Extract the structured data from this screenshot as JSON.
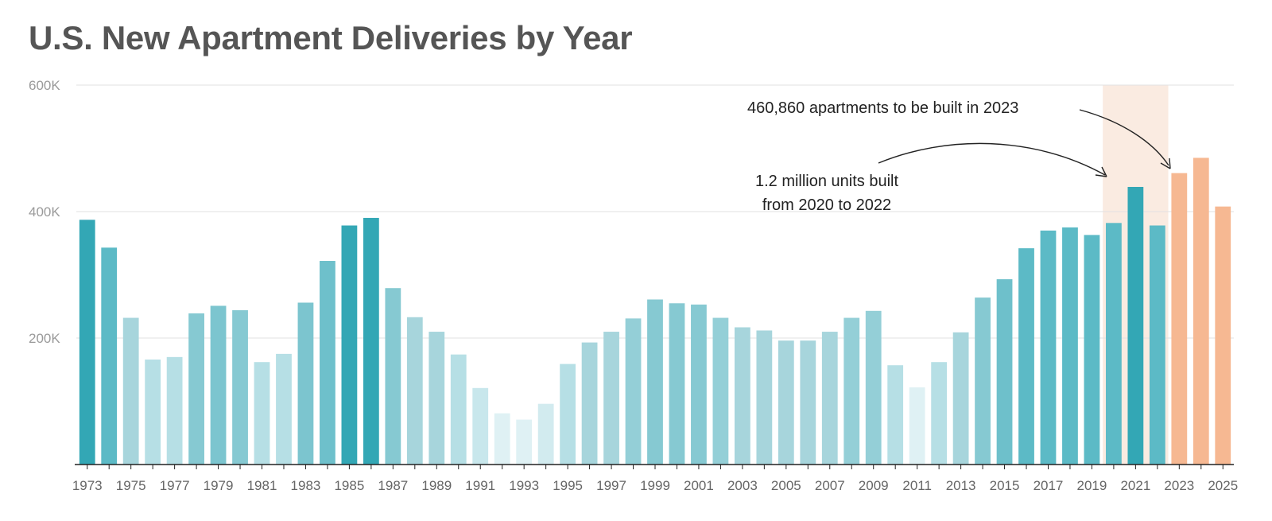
{
  "title": "U.S. New Apartment Deliveries by Year",
  "chart_data": {
    "type": "bar",
    "title": "U.S. New Apartment Deliveries by Year",
    "xlabel": "",
    "ylabel": "",
    "ylim": [
      0,
      600000
    ],
    "y_ticks": [
      {
        "value": 200000,
        "label": "200K"
      },
      {
        "value": 400000,
        "label": "400K"
      },
      {
        "value": 600000,
        "label": "600K"
      }
    ],
    "grid": true,
    "categories": [
      "1973",
      "1974",
      "1975",
      "1976",
      "1977",
      "1978",
      "1979",
      "1980",
      "1981",
      "1982",
      "1983",
      "1984",
      "1985",
      "1986",
      "1987",
      "1988",
      "1989",
      "1990",
      "1991",
      "1992",
      "1993",
      "1994",
      "1995",
      "1996",
      "1997",
      "1998",
      "1999",
      "2000",
      "2001",
      "2002",
      "2003",
      "2004",
      "2005",
      "2006",
      "2007",
      "2008",
      "2009",
      "2010",
      "2011",
      "2012",
      "2013",
      "2014",
      "2015",
      "2016",
      "2017",
      "2018",
      "2019",
      "2020",
      "2021",
      "2022",
      "2023",
      "2024",
      "2025"
    ],
    "x_tick_labels": [
      "1973",
      "1975",
      "1977",
      "1979",
      "1981",
      "1983",
      "1985",
      "1987",
      "1989",
      "1991",
      "1993",
      "1995",
      "1997",
      "1999",
      "2001",
      "2003",
      "2005",
      "2007",
      "2009",
      "2011",
      "2013",
      "2015",
      "2017",
      "2019",
      "2021",
      "2023",
      "2025"
    ],
    "values": [
      387000,
      343000,
      232000,
      166000,
      170000,
      239000,
      251000,
      244000,
      162000,
      175000,
      256000,
      322000,
      378000,
      390000,
      279000,
      233000,
      210000,
      174000,
      121000,
      81000,
      71000,
      96000,
      159000,
      193000,
      210000,
      231000,
      261000,
      255000,
      253000,
      232000,
      217000,
      212000,
      196000,
      196000,
      210000,
      232000,
      243000,
      157000,
      122000,
      162000,
      209000,
      264000,
      293000,
      342000,
      370000,
      375000,
      363000,
      382000,
      439000,
      378000,
      460860,
      485000,
      408000
    ],
    "colors": [
      "#33a7b5",
      "#5cbac6",
      "#a7d5dc",
      "#b6dfe5",
      "#b6dfe5",
      "#86c9d2",
      "#7cc5cf",
      "#86c9d2",
      "#b6dfe5",
      "#b6dfe5",
      "#7cc5cf",
      "#6ec0cb",
      "#33a7b5",
      "#33a7b5",
      "#86c9d2",
      "#a7d5dc",
      "#a7d5dc",
      "#b6dfe5",
      "#c8e7ec",
      "#dff1f4",
      "#dff1f4",
      "#d2ebef",
      "#b6dfe5",
      "#a7d5dc",
      "#a7d5dc",
      "#94cfd7",
      "#86c9d2",
      "#86c9d2",
      "#86c9d2",
      "#94cfd7",
      "#a7d5dc",
      "#a7d5dc",
      "#a7d5dc",
      "#a7d5dc",
      "#a7d5dc",
      "#94cfd7",
      "#94cfd7",
      "#b6dfe5",
      "#dff1f4",
      "#b6dfe5",
      "#a7d5dc",
      "#86c9d2",
      "#6ec0cb",
      "#5cbac6",
      "#5cbac6",
      "#5cbac6",
      "#5cbac6",
      "#5cbac6",
      "#33a7b5",
      "#5cbac6",
      "#f6b892",
      "#f6b892",
      "#f6b892"
    ],
    "highlight_range": [
      "2020",
      "2022"
    ],
    "highlight_color": "#faebe1",
    "annotations": [
      {
        "text": "460,860 apartments to be built in 2023",
        "points_to": "2023"
      },
      {
        "text_lines": [
          "1.2 million units built",
          "from 2020 to 2022"
        ],
        "points_to": "2020–2022"
      }
    ]
  }
}
